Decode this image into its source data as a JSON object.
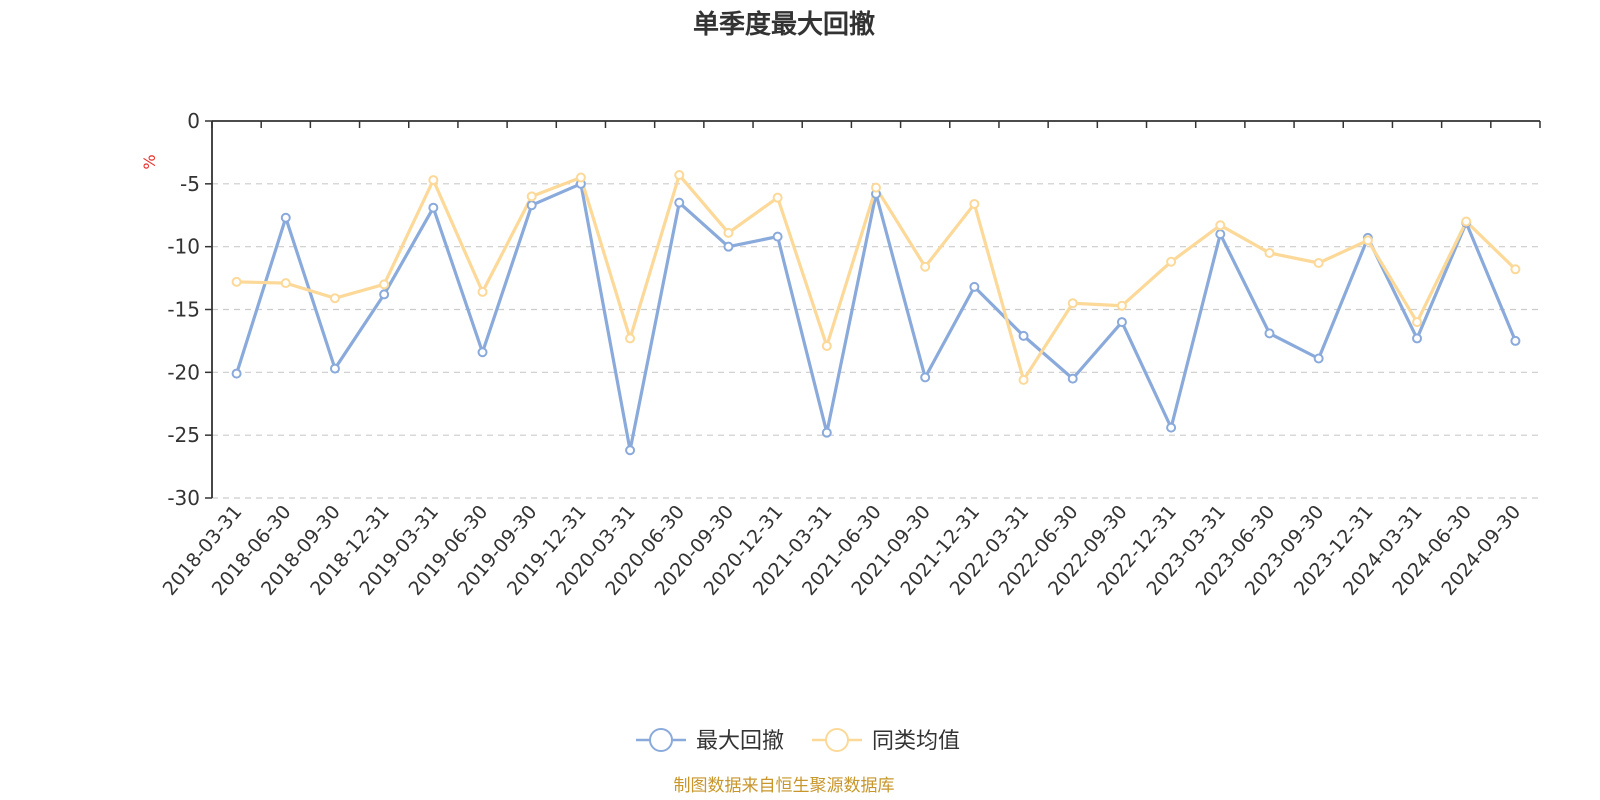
{
  "chart_data": {
    "type": "line",
    "title": "单季度最大回撤",
    "ylabel": "%",
    "xlabel": "",
    "ylim": [
      -30,
      0
    ],
    "yticks": [
      0,
      -5,
      -10,
      -15,
      -20,
      -25,
      -30
    ],
    "grid": true,
    "legend_position": "bottom-center",
    "categories": [
      "2018-03-31",
      "2018-06-30",
      "2018-09-30",
      "2018-12-31",
      "2019-03-31",
      "2019-06-30",
      "2019-09-30",
      "2019-12-31",
      "2020-03-31",
      "2020-06-30",
      "2020-09-30",
      "2020-12-31",
      "2021-03-31",
      "2021-06-30",
      "2021-09-30",
      "2021-12-31",
      "2022-03-31",
      "2022-06-30",
      "2022-09-30",
      "2022-12-31",
      "2023-03-31",
      "2023-06-30",
      "2023-09-30",
      "2023-12-31",
      "2024-03-31",
      "2024-06-30",
      "2024-09-30"
    ],
    "series": [
      {
        "name": "最大回撤",
        "color": "#8aaadb",
        "values": [
          -20.1,
          -7.7,
          -19.7,
          -13.8,
          -6.9,
          -18.4,
          -6.7,
          -5.0,
          -26.2,
          -6.5,
          -10.0,
          -9.2,
          -24.8,
          -5.8,
          -20.4,
          -13.2,
          -17.1,
          -20.5,
          -16.0,
          -24.4,
          -9.0,
          -16.9,
          -18.9,
          -9.3,
          -17.3,
          -8.1,
          -17.5
        ]
      },
      {
        "name": "同类均值",
        "color": "#fcd998",
        "values": [
          -12.8,
          -12.9,
          -14.1,
          -13.0,
          -4.7,
          -13.6,
          -6.0,
          -4.5,
          -17.3,
          -4.3,
          -8.9,
          -6.1,
          -17.9,
          -5.3,
          -11.6,
          -6.6,
          -20.6,
          -14.5,
          -14.7,
          -11.2,
          -8.3,
          -10.5,
          -11.3,
          -9.5,
          -16.0,
          -8.0,
          -11.8
        ]
      }
    ]
  },
  "footer": {
    "source": "制图数据来自恒生聚源数据库"
  }
}
